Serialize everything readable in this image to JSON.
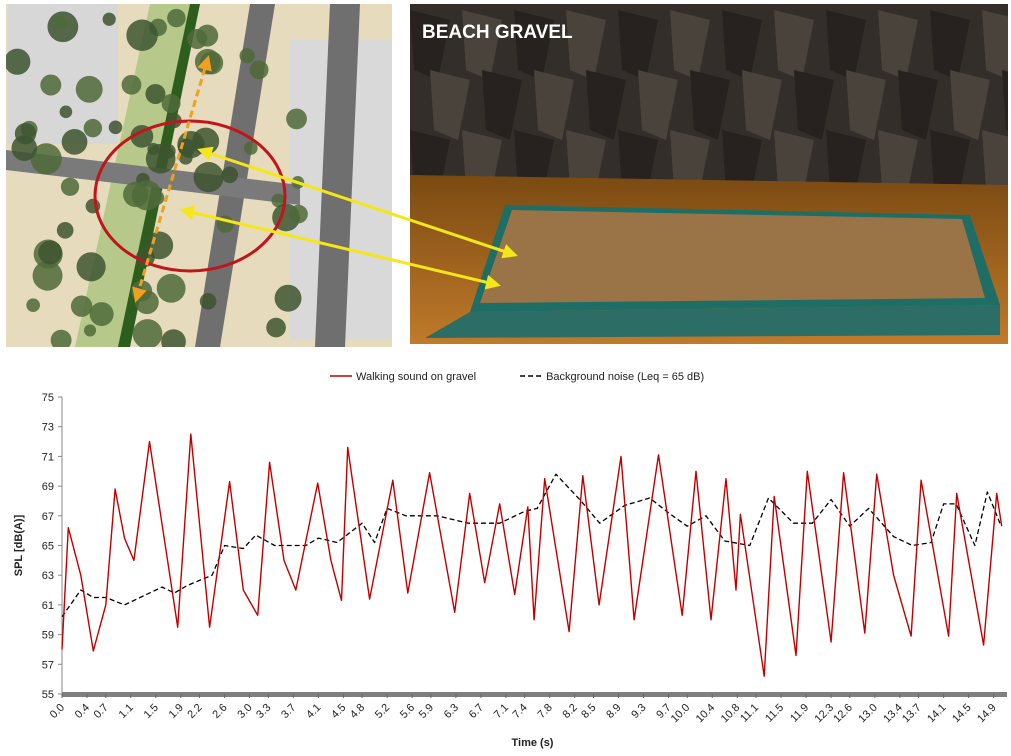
{
  "photo_caption": "BEACH GRAVEL",
  "chart_data": {
    "type": "line",
    "xlabel": "Time (s)",
    "ylabel": "SPL [dB(A)]",
    "xlim": [
      0,
      15.05
    ],
    "ylim": [
      55,
      75
    ],
    "yticks": [
      55,
      57,
      59,
      61,
      63,
      65,
      67,
      69,
      71,
      73,
      75
    ],
    "xticks": [
      {
        "value": 0,
        "label": "0.0"
      },
      0.4,
      0.7,
      1.1,
      1.5,
      1.9,
      2.2,
      2.6,
      {
        "value": 3,
        "label": "3.0"
      },
      3.3,
      3.7,
      4.1,
      4.5,
      4.8,
      5.2,
      5.6,
      5.9,
      6.3,
      6.7,
      7.1,
      7.4,
      7.8,
      8.2,
      8.5,
      8.9,
      9.3,
      9.7,
      {
        "value": 10,
        "label": "10.0"
      },
      10.4,
      10.8,
      11.1,
      11.5,
      11.9,
      12.3,
      12.6,
      {
        "value": 13,
        "label": "13.0"
      },
      13.4,
      13.7,
      14.1,
      14.5,
      14.9
    ],
    "legend": "top",
    "series": [
      {
        "name": "Walking sound on gravel",
        "color": "#c00000",
        "style": "solid",
        "x": [
          0,
          0.1,
          0.3,
          0.5,
          0.7,
          0.85,
          1.0,
          1.15,
          1.4,
          1.85,
          2.06,
          2.36,
          2.68,
          2.9,
          3.13,
          3.32,
          3.55,
          3.74,
          4.09,
          4.3,
          4.47,
          4.57,
          4.92,
          5.29,
          5.53,
          5.88,
          6.28,
          6.52,
          6.76,
          7.0,
          7.24,
          7.45,
          7.55,
          7.72,
          8.11,
          8.33,
          8.59,
          8.94,
          9.15,
          9.54,
          9.92,
          10.14,
          10.38,
          10.62,
          10.78,
          10.85,
          11.23,
          11.39,
          11.74,
          11.92,
          12.3,
          12.5,
          12.84,
          13.03,
          13.3,
          13.58,
          13.74,
          14.18,
          14.31,
          14.74,
          14.95,
          15.03
        ],
        "values": [
          58,
          66.2,
          63,
          57.9,
          61,
          68.8,
          65.5,
          64,
          72,
          59.5,
          72.5,
          59.5,
          69.3,
          62,
          60.3,
          70.6,
          64,
          62,
          69.2,
          64,
          61.3,
          71.6,
          61.4,
          69.4,
          61.8,
          69.9,
          60.5,
          68.5,
          62.5,
          67.8,
          61.7,
          67.6,
          60,
          69.5,
          59.2,
          69.7,
          61,
          71,
          60,
          71.1,
          60.3,
          70,
          60,
          69.5,
          62,
          67.1,
          56.2,
          68.3,
          57.6,
          70,
          58.5,
          69.9,
          59.1,
          69.8,
          63,
          58.9,
          69.4,
          58.9,
          68.5,
          58.3,
          68.5,
          66.3
        ]
      },
      {
        "name": "Background noise (Leq = 65 dB)",
        "color": "#000000",
        "style": "dashed",
        "x": [
          0,
          0.3,
          0.5,
          0.7,
          1.0,
          1.3,
          1.6,
          1.8,
          2.0,
          2.4,
          2.6,
          2.9,
          3.1,
          3.4,
          3.9,
          4.1,
          4.4,
          4.8,
          5.0,
          5.2,
          5.5,
          6.0,
          6.5,
          7.0,
          7.4,
          7.6,
          7.9,
          8.3,
          8.6,
          9.0,
          9.4,
          9.7,
          10.0,
          10.3,
          10.6,
          11.0,
          11.3,
          11.7,
          12.0,
          12.3,
          12.6,
          12.9,
          13.3,
          13.6,
          13.9,
          14.1,
          14.3,
          14.6,
          14.8,
          15.0
        ],
        "values": [
          60.2,
          62,
          61.5,
          61.5,
          61,
          61.6,
          62.2,
          61.8,
          62.3,
          63,
          65,
          64.8,
          65.7,
          65,
          65,
          65.5,
          65.2,
          66.5,
          65.2,
          67.5,
          67,
          67,
          66.5,
          66.5,
          67.3,
          67.5,
          69.8,
          68,
          66.5,
          67.7,
          68.2,
          67.2,
          66.3,
          67,
          65.3,
          65,
          68.2,
          66.5,
          66.5,
          68.1,
          66.3,
          67.5,
          65.6,
          65,
          65.2,
          67.8,
          67.8,
          65,
          68.6,
          66.5
        ]
      }
    ]
  }
}
